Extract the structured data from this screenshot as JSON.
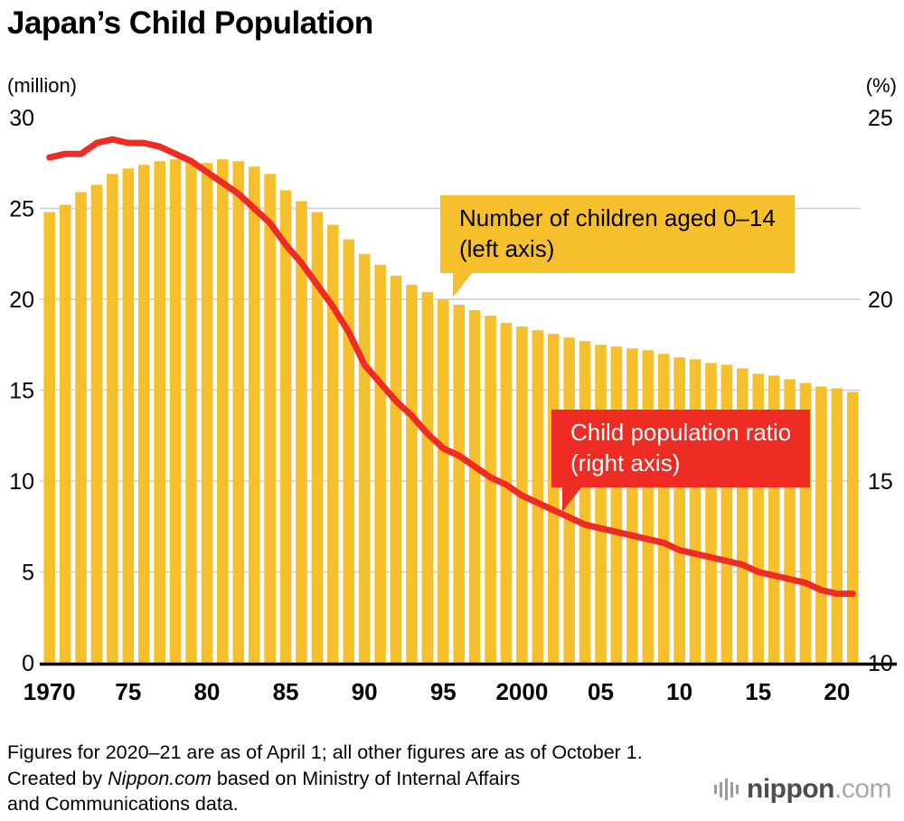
{
  "title": "Japan’s Child Population",
  "left_axis_unit": "(million)",
  "right_axis_unit": "(%)",
  "annotations": {
    "bars": {
      "line1": "Number of children aged 0–14",
      "line2": "(left axis)"
    },
    "ratio": {
      "line1": "Child population ratio",
      "line2": "(right axis)"
    }
  },
  "footnote": {
    "line1": "Figures for 2020–21 are as of April 1; all other figures are as of October 1.",
    "line2_prefix": "Created by ",
    "line2_brand": "Nippon.com",
    "line2_suffix": " based on Ministry of Internal Affairs",
    "line3": "and Communications data."
  },
  "logo": {
    "name": "nippon",
    "tld": ".com"
  },
  "colors": {
    "bar": "#F5C02C",
    "line": "#EE2C24",
    "grid": "#CCCCCC",
    "axis": "#000000",
    "text": "#000000"
  },
  "chart_data": {
    "type": "combo-bar-line",
    "title": "Japan’s Child Population",
    "x": [
      1970,
      1971,
      1972,
      1973,
      1974,
      1975,
      1976,
      1977,
      1978,
      1979,
      1980,
      1981,
      1982,
      1983,
      1984,
      1985,
      1986,
      1987,
      1988,
      1989,
      1990,
      1991,
      1992,
      1993,
      1994,
      1995,
      1996,
      1997,
      1998,
      1999,
      2000,
      2001,
      2002,
      2003,
      2004,
      2005,
      2006,
      2007,
      2008,
      2009,
      2010,
      2011,
      2012,
      2013,
      2014,
      2015,
      2016,
      2017,
      2018,
      2019,
      2020,
      2021
    ],
    "series": [
      {
        "name": "Number of children aged 0–14 (left axis, million)",
        "type": "bar",
        "values": [
          24.8,
          25.2,
          25.9,
          26.3,
          26.9,
          27.2,
          27.4,
          27.6,
          27.7,
          27.6,
          27.5,
          27.7,
          27.6,
          27.3,
          26.9,
          26.0,
          25.4,
          24.8,
          24.1,
          23.3,
          22.5,
          21.9,
          21.3,
          20.8,
          20.4,
          20.0,
          19.7,
          19.4,
          19.1,
          18.7,
          18.5,
          18.3,
          18.1,
          17.9,
          17.7,
          17.5,
          17.4,
          17.3,
          17.2,
          17.0,
          16.8,
          16.7,
          16.5,
          16.4,
          16.2,
          15.9,
          15.8,
          15.6,
          15.4,
          15.2,
          15.1,
          14.9
        ]
      },
      {
        "name": "Child population ratio (right axis, %)",
        "type": "line",
        "values": [
          23.9,
          24.0,
          24.0,
          24.3,
          24.4,
          24.3,
          24.3,
          24.2,
          24.0,
          23.8,
          23.5,
          23.2,
          22.9,
          22.5,
          22.1,
          21.5,
          21.0,
          20.4,
          19.8,
          19.1,
          18.2,
          17.7,
          17.2,
          16.8,
          16.3,
          15.9,
          15.7,
          15.4,
          15.1,
          14.9,
          14.6,
          14.4,
          14.2,
          14.0,
          13.8,
          13.7,
          13.6,
          13.5,
          13.4,
          13.3,
          13.1,
          13.0,
          12.9,
          12.8,
          12.7,
          12.5,
          12.4,
          12.3,
          12.2,
          12.0,
          11.9,
          11.9
        ]
      }
    ],
    "left_axis": {
      "label": "(million)",
      "min": 0,
      "max": 30,
      "ticks": [
        0,
        5,
        10,
        15,
        20,
        25,
        30
      ]
    },
    "right_axis": {
      "label": "(%)",
      "min": 10,
      "max": 25,
      "ticks": [
        10,
        15,
        20,
        25
      ]
    },
    "x_ticks": [
      {
        "year": 1970,
        "label": "1970"
      },
      {
        "year": 1975,
        "label": "75"
      },
      {
        "year": 1980,
        "label": "80"
      },
      {
        "year": 1985,
        "label": "85"
      },
      {
        "year": 1990,
        "label": "90"
      },
      {
        "year": 1995,
        "label": "95"
      },
      {
        "year": 2000,
        "label": "2000"
      },
      {
        "year": 2005,
        "label": "05"
      },
      {
        "year": 2010,
        "label": "10"
      },
      {
        "year": 2015,
        "label": "15"
      },
      {
        "year": 2020,
        "label": "20"
      }
    ],
    "grid": "horizontal",
    "legend": "annotated callouts on plot"
  }
}
